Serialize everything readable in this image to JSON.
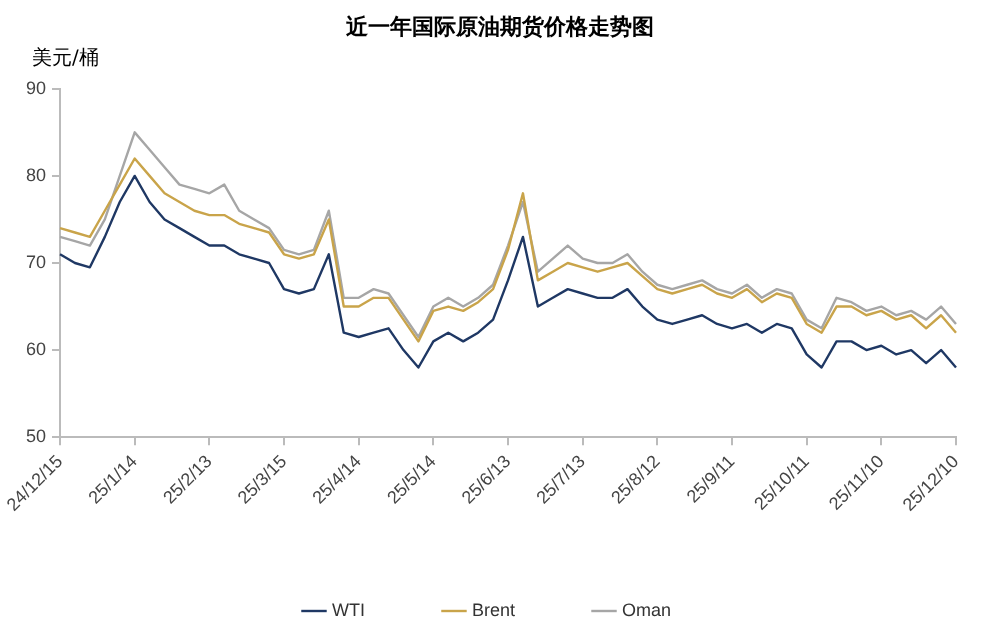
{
  "chart_data": {
    "type": "line",
    "title": "近一年国际原油期货价格走势图",
    "ylabel": "美元/桶",
    "categories": [
      "24/12/15",
      null,
      null,
      null,
      null,
      "25/1/14",
      null,
      null,
      null,
      null,
      "25/2/13",
      null,
      null,
      null,
      null,
      "25/3/15",
      null,
      null,
      null,
      null,
      "25/4/14",
      null,
      null,
      null,
      null,
      "25/5/14",
      null,
      null,
      null,
      null,
      "25/6/13",
      null,
      null,
      null,
      null,
      "25/7/13",
      null,
      null,
      null,
      null,
      "25/8/12",
      null,
      null,
      null,
      null,
      "25/9/11",
      null,
      null,
      null,
      null,
      "25/10/11",
      null,
      null,
      null,
      null,
      "25/11/10",
      null,
      null,
      null,
      null,
      "25/12/10"
    ],
    "series": [
      {
        "name": "WTI",
        "color": "#1f3864",
        "values": [
          71,
          70,
          69.5,
          73,
          77,
          80,
          77,
          75,
          74,
          73,
          72,
          72,
          71,
          70.5,
          70,
          67,
          66.5,
          67,
          71,
          62,
          61.5,
          62,
          62.5,
          60,
          58,
          61,
          62,
          61,
          62,
          63.5,
          68,
          73,
          65,
          66,
          67,
          66.5,
          66,
          66,
          67,
          65,
          63.5,
          63,
          63.5,
          64,
          63,
          62.5,
          63,
          62,
          63,
          62.5,
          59.5,
          58,
          61,
          61,
          60,
          60.5,
          59.5,
          60,
          58.5,
          60,
          58
        ]
      },
      {
        "name": "Brent",
        "color": "#c9a44a",
        "values": [
          74,
          73.5,
          73,
          76,
          79,
          82,
          80,
          78,
          77,
          76,
          75.5,
          75.5,
          74.5,
          74,
          73.5,
          71,
          70.5,
          71,
          75,
          65,
          65,
          66,
          66,
          63.5,
          61,
          64.5,
          65,
          64.5,
          65.5,
          67,
          71.5,
          78,
          68,
          69,
          70,
          69.5,
          69,
          69.5,
          70,
          68.5,
          67,
          66.5,
          67,
          67.5,
          66.5,
          66,
          67,
          65.5,
          66.5,
          66,
          63,
          62,
          65,
          65,
          64,
          64.5,
          63.5,
          64,
          62.5,
          64,
          62
        ]
      },
      {
        "name": "Oman",
        "color": "#a6a6a6",
        "values": [
          73,
          72.5,
          72,
          75,
          80,
          85,
          83,
          81,
          79,
          78.5,
          78,
          79,
          76,
          75,
          74,
          71.5,
          71,
          71.5,
          76,
          66,
          66,
          67,
          66.5,
          64,
          61.5,
          65,
          66,
          65,
          66,
          67.5,
          72,
          77,
          69,
          70.5,
          72,
          70.5,
          70,
          70,
          71,
          69,
          67.5,
          67,
          67.5,
          68,
          67,
          66.5,
          67.5,
          66,
          67,
          66.5,
          63.5,
          62.5,
          66,
          65.5,
          64.5,
          65,
          64,
          64.5,
          63.5,
          65,
          63
        ]
      }
    ],
    "ylim": [
      50,
      90
    ],
    "yticks": [
      50,
      60,
      70,
      80,
      90
    ],
    "grid": false,
    "legend": "bottom",
    "marker": "none",
    "line_style": "solid"
  }
}
